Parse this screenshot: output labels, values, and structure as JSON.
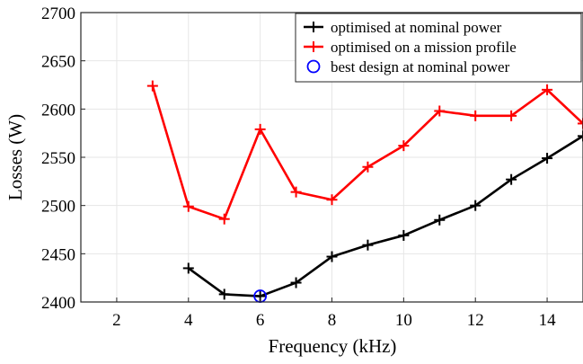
{
  "chart_data": {
    "type": "line",
    "xlabel": "Frequency (kHz)",
    "ylabel": "Losses (W)",
    "xlim": [
      1,
      15
    ],
    "ylim": [
      2400,
      2700
    ],
    "xticks": [
      2,
      4,
      6,
      8,
      10,
      12,
      14
    ],
    "yticks": [
      2400,
      2450,
      2500,
      2550,
      2600,
      2650,
      2700
    ],
    "grid": true,
    "legend_position": "top-right",
    "series": [
      {
        "name": "optimised at nominal power",
        "color": "#000000",
        "marker": "plus",
        "x": [
          4,
          5,
          6,
          7,
          8,
          9,
          10,
          11,
          12,
          13,
          14,
          15
        ],
        "y": [
          2435,
          2408,
          2406,
          2420,
          2447,
          2459,
          2469,
          2485,
          2500,
          2527,
          2549,
          2572
        ]
      },
      {
        "name": "optimised on a mission profile",
        "color": "#ff0000",
        "marker": "plus",
        "x": [
          3,
          4,
          5,
          6,
          7,
          8,
          9,
          10,
          11,
          12,
          13,
          14,
          15
        ],
        "y": [
          2624,
          2499,
          2486,
          2579,
          2514,
          2506,
          2540,
          2562,
          2598,
          2593,
          2593,
          2620,
          2585
        ]
      },
      {
        "name": "best design at nominal power",
        "color": "#0000ff",
        "marker": "circle",
        "x": [
          6
        ],
        "y": [
          2406
        ]
      }
    ]
  }
}
